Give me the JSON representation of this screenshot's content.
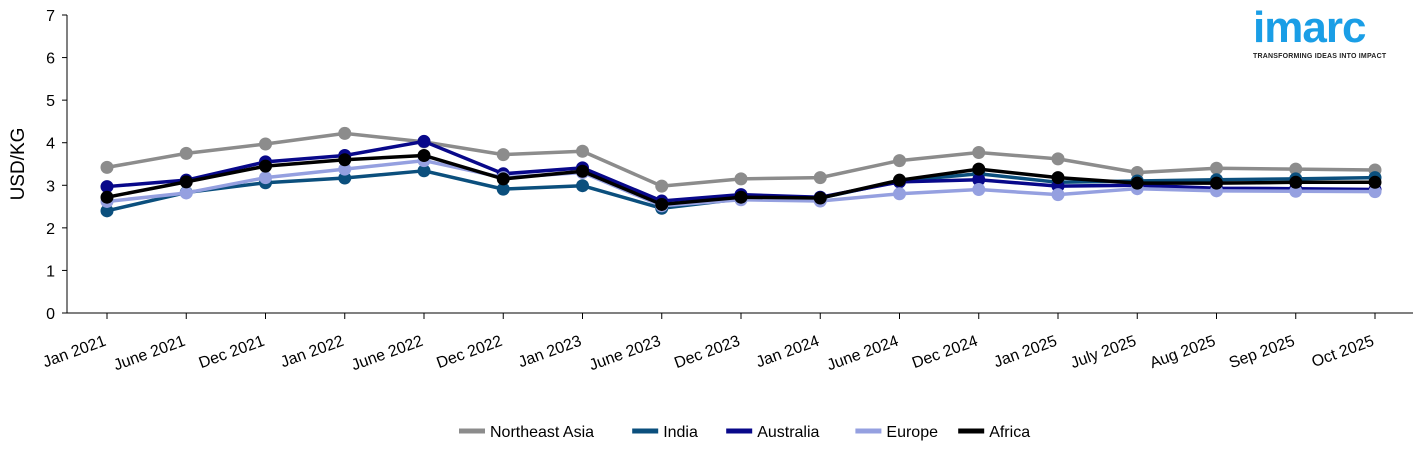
{
  "logo": {
    "name": "imarc",
    "tagline": "TRANSFORMING IDEAS INTO IMPACT"
  },
  "chart_data": {
    "type": "line",
    "title": "",
    "xlabel": "",
    "ylabel": "USD/KG",
    "ylim": [
      0,
      7
    ],
    "yticks": [
      "0",
      "1",
      "2",
      "3",
      "4",
      "5",
      "6",
      "7"
    ],
    "categories": [
      "Jan 2021",
      "June 2021",
      "Dec 2021",
      "Jan 2022",
      "June 2022",
      "Dec 2022",
      "Jan 2023",
      "June 2023",
      "Dec 2023",
      "Jan 2024",
      "June 2024",
      "Dec 2024",
      "Jan 2025",
      "July 2025",
      "Aug 2025",
      "Sep 2025",
      "Oct 2025"
    ],
    "grid": false,
    "legend_position": "bottom",
    "series": [
      {
        "name": "Northeast Asia",
        "color": "#8c8c8c",
        "values": [
          3.42,
          3.75,
          3.97,
          4.22,
          4.02,
          3.72,
          3.8,
          2.98,
          3.15,
          3.18,
          3.58,
          3.77,
          3.62,
          3.3,
          3.4,
          3.38,
          3.36
        ]
      },
      {
        "name": "India",
        "color": "#0b4f7d",
        "values": [
          2.4,
          2.83,
          3.06,
          3.17,
          3.34,
          2.91,
          2.99,
          2.46,
          2.68,
          2.7,
          3.1,
          3.27,
          3.07,
          3.1,
          3.13,
          3.15,
          3.18
        ]
      },
      {
        "name": "Australia",
        "color": "#08088a",
        "values": [
          2.97,
          3.12,
          3.55,
          3.7,
          4.03,
          3.27,
          3.41,
          2.63,
          2.78,
          2.72,
          3.08,
          3.13,
          2.98,
          3.0,
          2.93,
          2.92,
          2.9
        ]
      },
      {
        "name": "Europe",
        "color": "#95a0e0",
        "values": [
          2.62,
          2.82,
          3.18,
          3.38,
          3.58,
          3.18,
          3.3,
          2.52,
          2.66,
          2.63,
          2.8,
          2.9,
          2.78,
          2.92,
          2.87,
          2.86,
          2.85
        ]
      },
      {
        "name": "Africa",
        "color": "#000000",
        "values": [
          2.72,
          3.08,
          3.45,
          3.6,
          3.7,
          3.15,
          3.33,
          2.55,
          2.72,
          2.7,
          3.12,
          3.38,
          3.18,
          3.05,
          3.05,
          3.07,
          3.07
        ]
      }
    ]
  }
}
